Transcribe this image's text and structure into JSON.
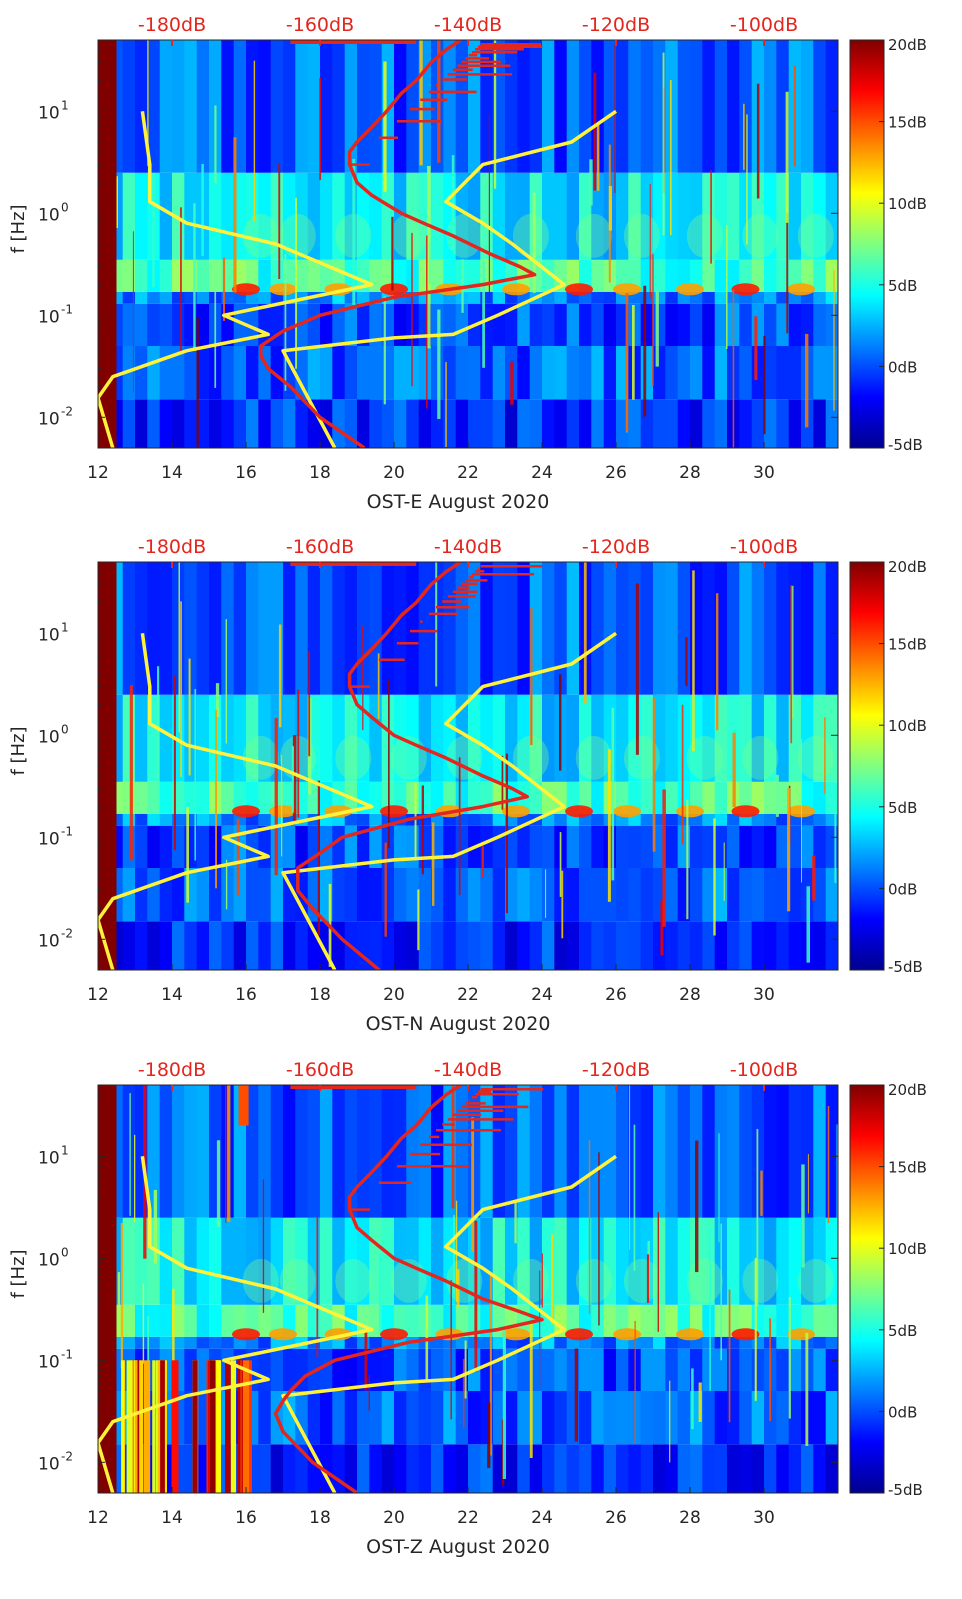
{
  "figure": {
    "colormap": [
      "#00008f",
      "#0000ff",
      "#0080ff",
      "#00ffff",
      "#80ff80",
      "#ffff00",
      "#ff8000",
      "#ff0000",
      "#800000"
    ],
    "yellow_color": "#fff23a",
    "red_color": "#e3261e",
    "top_axis_color": "#e3261e"
  },
  "chart_data": [
    {
      "type": "heatmap",
      "xlabel": "OST-E August 2020",
      "ylabel": "f [Hz]",
      "xlim": [
        12,
        32
      ],
      "ylim": [
        0.005,
        50
      ],
      "yscale": "log",
      "xticks": [
        12,
        14,
        16,
        18,
        20,
        22,
        24,
        26,
        28,
        30
      ],
      "xtick_labels": [
        "12",
        "14",
        "16",
        "18",
        "20",
        "22",
        "24",
        "26",
        "28",
        "30"
      ],
      "yticks": [
        0.01,
        0.1,
        1,
        10
      ],
      "ytick_labels": [
        "10",
        "10",
        "10",
        "10"
      ],
      "ytick_exponents": [
        "-2",
        "-1",
        "0",
        "1"
      ],
      "top_axis": {
        "range": [
          -190,
          -90
        ],
        "ticks": [
          -180,
          -160,
          -140,
          -120,
          -100
        ],
        "labels": [
          "-180dB",
          "-160dB",
          "-140dB",
          "-120dB",
          "-100dB"
        ]
      },
      "colorbar": {
        "range": [
          -5,
          20
        ],
        "ticks": [
          -5,
          0,
          5,
          10,
          15,
          20
        ],
        "labels": [
          "-5dB",
          "0dB",
          "5dB",
          "10dB",
          "15dB",
          "20dB"
        ]
      },
      "series": [
        {
          "color": "yellow",
          "values_f_hz": [
            0.005,
            0.0155,
            0.025,
            0.045,
            0.065,
            0.1,
            0.2,
            0.5,
            0.8,
            1.3,
            3,
            10
          ],
          "values_db": [
            -188,
            -190,
            -188,
            -178,
            -167,
            -173,
            -153,
            -166,
            -178,
            -183,
            -183,
            -184
          ]
        },
        {
          "color": "yellow",
          "values_f_hz": [
            0.005,
            0.045,
            0.06,
            0.065,
            0.1,
            0.2,
            0.5,
            0.8,
            1.3,
            3,
            5,
            10
          ],
          "values_db": [
            -158,
            -165,
            -150,
            -142,
            -136,
            -127,
            -134,
            -138,
            -143,
            -138,
            -126,
            -120
          ]
        },
        {
          "color": "red",
          "values_f_hz": [
            0.005,
            0.01,
            0.02,
            0.03,
            0.04,
            0.05,
            0.07,
            0.1,
            0.15,
            0.2,
            0.25,
            0.3,
            0.4,
            0.6,
            0.8,
            1,
            1.5,
            2,
            3,
            4,
            5,
            7,
            10,
            15,
            20,
            30,
            40,
            50
          ],
          "values_db": [
            -154,
            -160,
            -164,
            -167,
            -168,
            -168,
            -165,
            -160,
            -150,
            -138,
            -131,
            -133,
            -137,
            -142,
            -146,
            -149,
            -153,
            -155,
            -156,
            -156,
            -155,
            -153,
            -151,
            -149,
            -147,
            -145,
            -143,
            -141
          ]
        }
      ]
    },
    {
      "type": "heatmap",
      "xlabel": "OST-N August 2020",
      "ylabel": "f [Hz]",
      "xlim": [
        12,
        32
      ],
      "ylim": [
        0.005,
        50
      ],
      "yscale": "log",
      "xticks": [
        12,
        14,
        16,
        18,
        20,
        22,
        24,
        26,
        28,
        30
      ],
      "xtick_labels": [
        "12",
        "14",
        "16",
        "18",
        "20",
        "22",
        "24",
        "26",
        "28",
        "30"
      ],
      "yticks": [
        0.01,
        0.1,
        1,
        10
      ],
      "ytick_labels": [
        "10",
        "10",
        "10",
        "10"
      ],
      "ytick_exponents": [
        "-2",
        "-1",
        "0",
        "1"
      ],
      "top_axis": {
        "range": [
          -190,
          -90
        ],
        "ticks": [
          -180,
          -160,
          -140,
          -120,
          -100
        ],
        "labels": [
          "-180dB",
          "-160dB",
          "-140dB",
          "-120dB",
          "-100dB"
        ]
      },
      "colorbar": {
        "range": [
          -5,
          20
        ],
        "ticks": [
          -5,
          0,
          5,
          10,
          15,
          20
        ],
        "labels": [
          "-5dB",
          "0dB",
          "5dB",
          "10dB",
          "15dB",
          "20dB"
        ]
      },
      "series": [
        {
          "color": "yellow",
          "values_f_hz": [
            0.005,
            0.0155,
            0.025,
            0.045,
            0.065,
            0.1,
            0.2,
            0.5,
            0.8,
            1.3,
            3,
            10
          ],
          "values_db": [
            -188,
            -190,
            -188,
            -178,
            -167,
            -173,
            -153,
            -166,
            -178,
            -183,
            -183,
            -184
          ]
        },
        {
          "color": "yellow",
          "values_f_hz": [
            0.005,
            0.045,
            0.06,
            0.065,
            0.1,
            0.2,
            0.5,
            0.8,
            1.3,
            3,
            5,
            10
          ],
          "values_db": [
            -158,
            -165,
            -150,
            -142,
            -136,
            -127,
            -134,
            -138,
            -143,
            -138,
            -126,
            -120
          ]
        },
        {
          "color": "red",
          "values_f_hz": [
            0.005,
            0.01,
            0.02,
            0.03,
            0.04,
            0.05,
            0.07,
            0.1,
            0.15,
            0.2,
            0.25,
            0.3,
            0.4,
            0.6,
            0.8,
            1,
            1.5,
            2,
            3,
            4,
            5,
            7,
            10,
            15,
            20,
            30,
            40,
            50
          ],
          "values_db": [
            -152,
            -157,
            -161,
            -163,
            -163,
            -163,
            -160,
            -157,
            -148,
            -138,
            -132,
            -134,
            -138,
            -143,
            -147,
            -150,
            -153,
            -155,
            -156,
            -156,
            -155,
            -153,
            -151,
            -149,
            -147,
            -145,
            -143,
            -141
          ]
        }
      ]
    },
    {
      "type": "heatmap",
      "xlabel": "OST-Z August 2020",
      "ylabel": "f [Hz]",
      "xlim": [
        12,
        32
      ],
      "ylim": [
        0.005,
        50
      ],
      "yscale": "log",
      "xticks": [
        12,
        14,
        16,
        18,
        20,
        22,
        24,
        26,
        28,
        30
      ],
      "xtick_labels": [
        "12",
        "14",
        "16",
        "18",
        "20",
        "22",
        "24",
        "26",
        "28",
        "30"
      ],
      "yticks": [
        0.01,
        0.1,
        1,
        10
      ],
      "ytick_labels": [
        "10",
        "10",
        "10",
        "10"
      ],
      "ytick_exponents": [
        "-2",
        "-1",
        "0",
        "1"
      ],
      "top_axis": {
        "range": [
          -190,
          -90
        ],
        "ticks": [
          -180,
          -160,
          -140,
          -120,
          -100
        ],
        "labels": [
          "-180dB",
          "-160dB",
          "-140dB",
          "-120dB",
          "-100dB"
        ]
      },
      "colorbar": {
        "range": [
          -5,
          20
        ],
        "ticks": [
          -5,
          0,
          5,
          10,
          15,
          20
        ],
        "labels": [
          "-5dB",
          "0dB",
          "5dB",
          "10dB",
          "15dB",
          "20dB"
        ]
      },
      "series": [
        {
          "color": "yellow",
          "values_f_hz": [
            0.005,
            0.0155,
            0.025,
            0.045,
            0.065,
            0.1,
            0.2,
            0.5,
            0.8,
            1.3,
            3,
            10
          ],
          "values_db": [
            -188,
            -190,
            -188,
            -178,
            -167,
            -173,
            -153,
            -166,
            -178,
            -183,
            -183,
            -184
          ]
        },
        {
          "color": "yellow",
          "values_f_hz": [
            0.005,
            0.045,
            0.06,
            0.065,
            0.1,
            0.2,
            0.5,
            0.8,
            1.3,
            3,
            5,
            10
          ],
          "values_db": [
            -158,
            -165,
            -150,
            -142,
            -136,
            -127,
            -134,
            -138,
            -143,
            -138,
            -126,
            -120
          ]
        },
        {
          "color": "red",
          "values_f_hz": [
            0.005,
            0.01,
            0.02,
            0.03,
            0.04,
            0.05,
            0.07,
            0.1,
            0.15,
            0.2,
            0.25,
            0.3,
            0.4,
            0.6,
            0.8,
            1,
            1.5,
            2,
            3,
            4,
            5,
            7,
            10,
            15,
            20,
            30,
            40,
            50
          ],
          "values_db": [
            -155,
            -161,
            -165,
            -166,
            -165,
            -164,
            -162,
            -158,
            -148,
            -136,
            -130,
            -133,
            -138,
            -143,
            -147,
            -150,
            -153,
            -155,
            -156,
            -156,
            -155,
            -153,
            -151,
            -149,
            -147,
            -145,
            -143,
            -141
          ]
        }
      ]
    }
  ]
}
